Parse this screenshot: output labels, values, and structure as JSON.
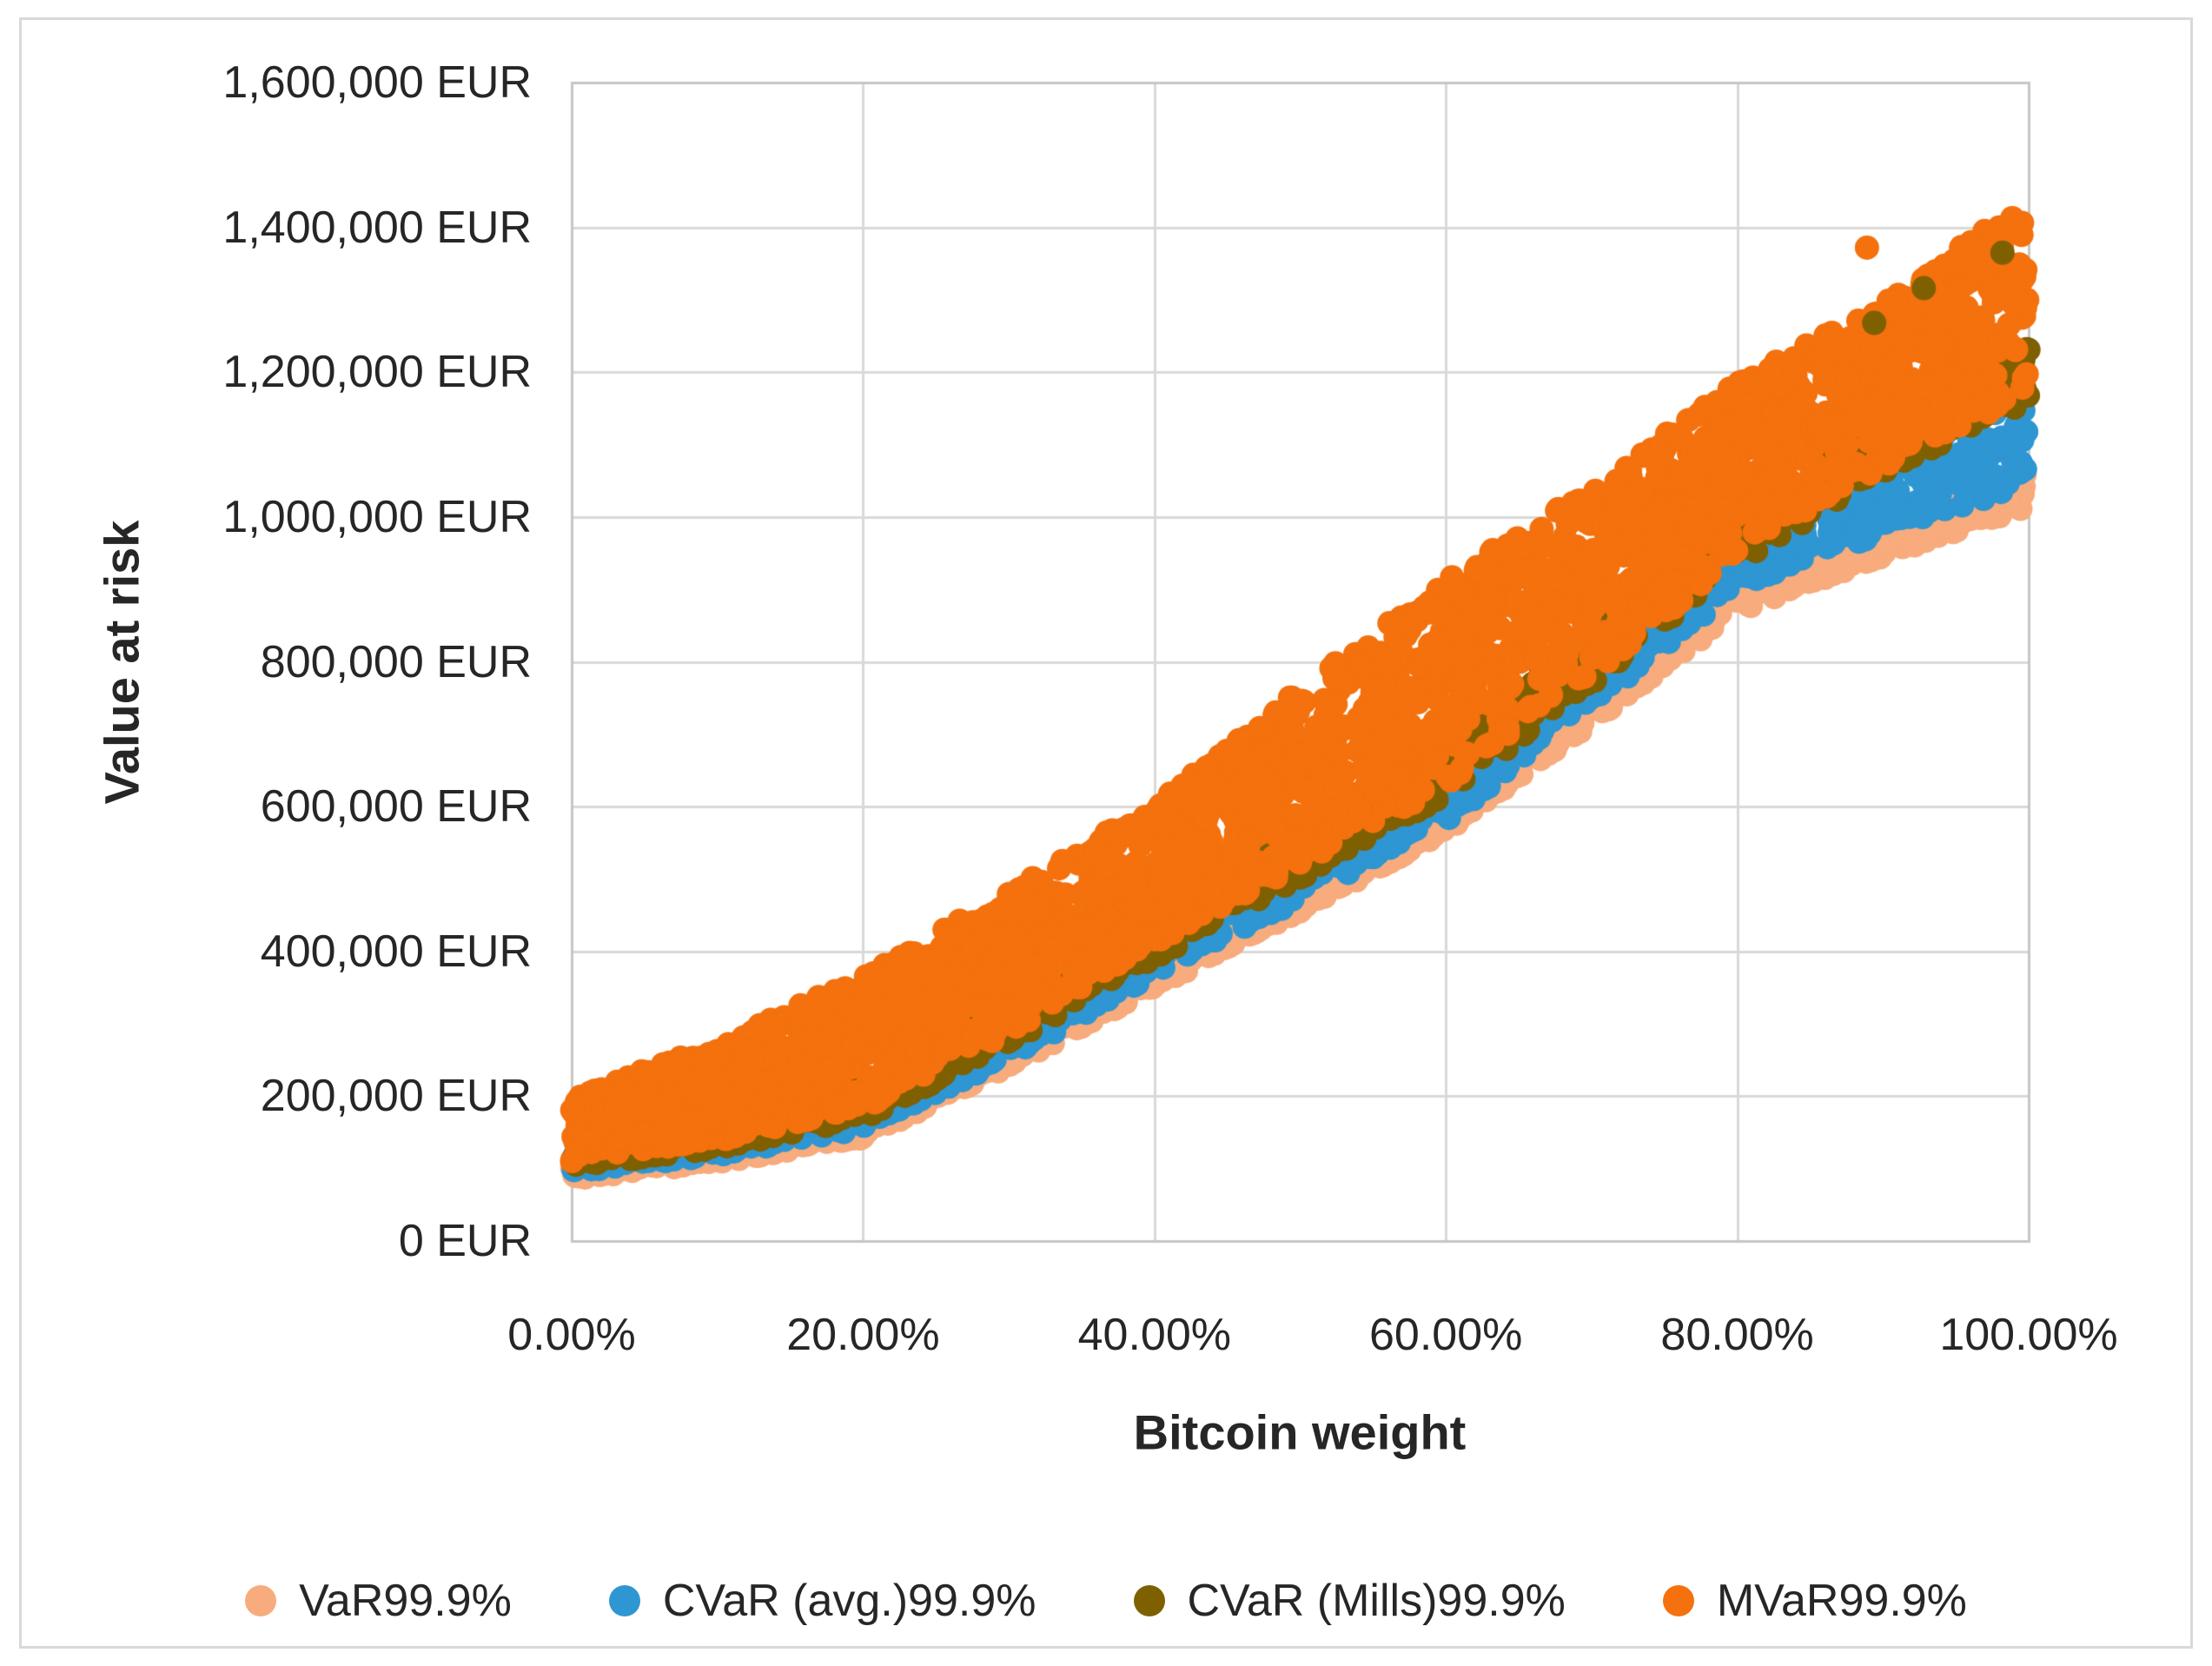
{
  "figure": {
    "background": "#FFFFFF",
    "border_color": "#D9D9D9"
  },
  "text_color": "#262626",
  "grid_color": "#D9D9D9",
  "axis_color": "#C6C6C6",
  "chart_data": {
    "type": "scatter",
    "title": "",
    "xlabel": "Bitcoin weight",
    "ylabel": "Value at risk",
    "xlim": [
      0,
      100
    ],
    "ylim": [
      0,
      1600000
    ],
    "x_unit": "percent",
    "y_unit": "EUR",
    "grid": true,
    "legend_position": "bottom",
    "x_tick_values": [
      0,
      20,
      40,
      60,
      80,
      100
    ],
    "x_tick_labels": [
      "0.00%",
      "20.00%",
      "40.00%",
      "60.00%",
      "80.00%",
      "100.00%"
    ],
    "y_tick_values": [
      0,
      200000,
      400000,
      600000,
      800000,
      1000000,
      1200000,
      1400000,
      1600000
    ],
    "y_tick_labels": [
      "0 EUR",
      "200,000 EUR",
      "400,000 EUR",
      "600,000 EUR",
      "800,000 EUR",
      "1,000,000 EUR",
      "1,200,000 EUR",
      "1,400,000 EUR",
      "1,600,000 EUR"
    ],
    "band_weights_pct": [
      0,
      10,
      20,
      30,
      40,
      50,
      60,
      70,
      80,
      90,
      100
    ],
    "series": [
      {
        "name": "VaR99.9%",
        "color": "#F8AB7C",
        "marker": "circle",
        "n_points": 950,
        "band_lower_eur": [
          85000,
          108000,
          142000,
          240000,
          350000,
          455000,
          565000,
          715000,
          870000,
          945000,
          1015000
        ],
        "band_upper_eur": [
          105000,
          130000,
          165000,
          265000,
          378000,
          485000,
          592000,
          748000,
          915000,
          985000,
          1065000
        ]
      },
      {
        "name": "CVaR (avg.)99.9%",
        "color": "#2E96D2",
        "marker": "circle",
        "n_points": 950,
        "band_lower_eur": [
          95000,
          118000,
          155000,
          252000,
          366000,
          472000,
          580000,
          738000,
          900000,
          972000,
          1048000
        ],
        "band_upper_eur": [
          120000,
          148000,
          195000,
          300000,
          430000,
          540000,
          650000,
          805000,
          965000,
          1095000,
          1185000
        ]
      },
      {
        "name": "CVaR (Mills)99.9%",
        "color": "#7F6000",
        "marker": "circle",
        "n_points": 750,
        "band_lower_eur": [
          102000,
          128000,
          168000,
          272000,
          390000,
          500000,
          615000,
          770000,
          935000,
          1060000,
          1160000
        ],
        "band_upper_eur": [
          135000,
          165000,
          215000,
          325000,
          455000,
          570000,
          685000,
          845000,
          1010000,
          1140000,
          1240000
        ]
      },
      {
        "name": "MVaR99.9%",
        "color": "#F4710D",
        "marker": "circle",
        "n_points": 2500,
        "band_lower_eur": [
          110000,
          138000,
          182000,
          288000,
          410000,
          520000,
          630000,
          782000,
          945000,
          1070000,
          1165000
        ],
        "band_upper_eur": [
          200000,
          272000,
          366000,
          482000,
          605000,
          762000,
          915000,
          1040000,
          1185000,
          1295000,
          1445000
        ]
      }
    ],
    "outlier_points": [
      {
        "series": "MVaR99.9%",
        "weight_pct": 88.9,
        "value_eur": 1372000
      },
      {
        "series": "CVaR (Mills)99.9%",
        "weight_pct": 89.4,
        "value_eur": 1268000
      },
      {
        "series": "CVaR (Mills)99.9%",
        "weight_pct": 92.8,
        "value_eur": 1316000
      },
      {
        "series": "CVaR (Mills)99.9%",
        "weight_pct": 98.2,
        "value_eur": 1365000
      }
    ]
  }
}
